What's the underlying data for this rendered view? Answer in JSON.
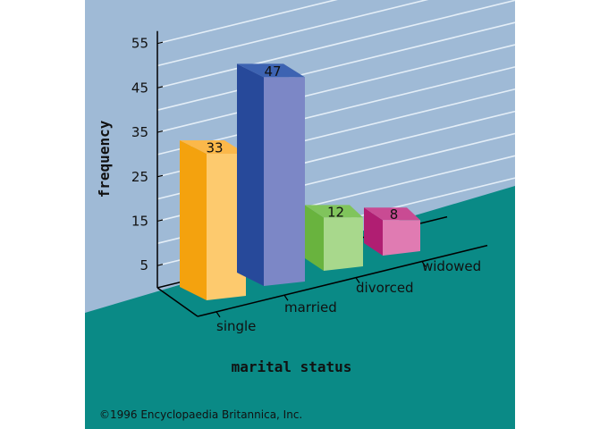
{
  "chart_data": {
    "type": "bar",
    "style": "3d",
    "categories": [
      "single",
      "married",
      "divorced",
      "widowed"
    ],
    "values": [
      33,
      47,
      12,
      8
    ],
    "data_labels": [
      "33",
      "47",
      "12",
      "8"
    ],
    "xlabel": "marital status",
    "ylabel": "frequency",
    "yticks": [
      5,
      15,
      25,
      35,
      45,
      55
    ],
    "ylim": [
      0,
      57
    ],
    "grid": true,
    "colors": {
      "background_wall": "#9fbad6",
      "floor": "#0a8a86",
      "gridline": "#e4eef7",
      "axis": "#000000",
      "bars": [
        {
          "front": "#fdca6e",
          "side": "#f4a20e",
          "top": "#fbb84a"
        },
        {
          "front": "#7c87c6",
          "side": "#27499a",
          "top": "#3d63b2"
        },
        {
          "front": "#a8d88c",
          "side": "#69b33e",
          "top": "#80c45c"
        },
        {
          "front": "#e07bb2",
          "side": "#b01e72",
          "top": "#c94b93"
        }
      ]
    }
  },
  "credit": "©1996 Encyclopaedia Britannica, Inc."
}
